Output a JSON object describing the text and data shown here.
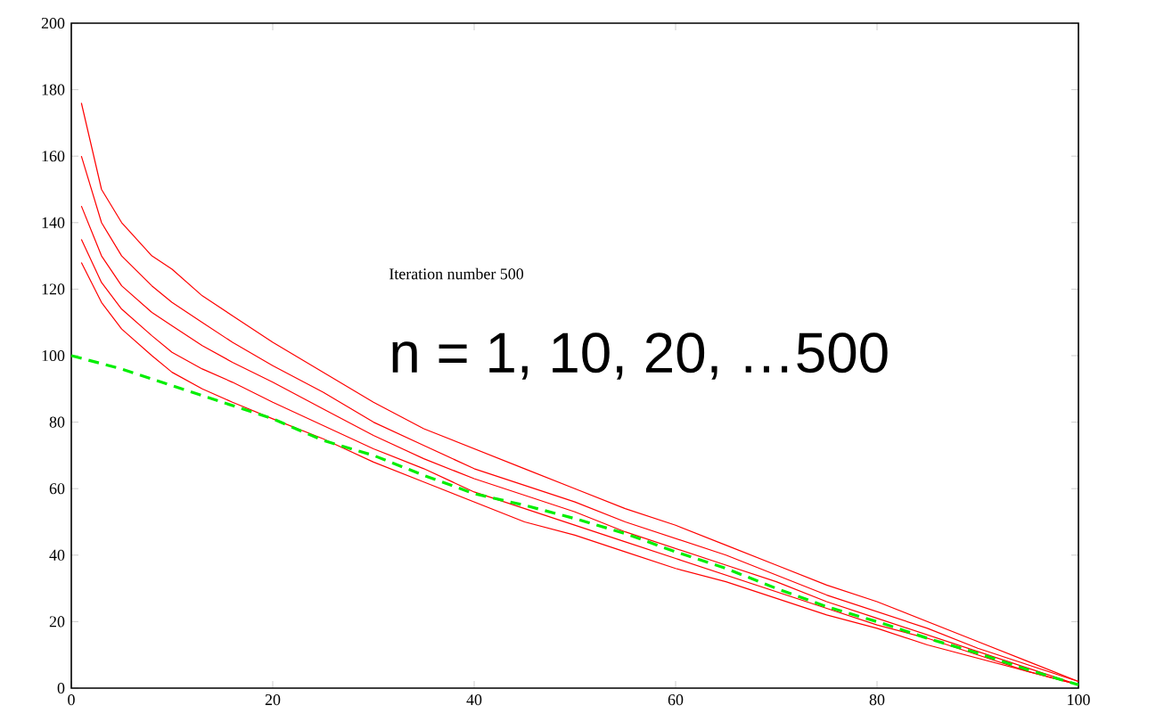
{
  "chart_data": {
    "type": "line",
    "xlim": [
      0,
      100
    ],
    "ylim": [
      0,
      200
    ],
    "xticks": [
      0,
      20,
      40,
      60,
      80,
      100
    ],
    "yticks": [
      0,
      20,
      40,
      60,
      80,
      100,
      120,
      140,
      160,
      180,
      200
    ],
    "grid": false,
    "marker": "none",
    "annotations": [
      "Iteration number 500",
      "n = 1, 10, 20, …500"
    ],
    "series": [
      {
        "color": "#ff0000",
        "x": [
          1,
          3,
          5,
          8,
          10,
          13,
          16,
          20,
          25,
          30,
          35,
          40,
          45,
          50,
          55,
          60,
          65,
          70,
          75,
          80,
          85,
          90,
          95,
          100
        ],
        "values": [
          176,
          150,
          140,
          130,
          126,
          118,
          112,
          104,
          95,
          86,
          78,
          72,
          66,
          60,
          54,
          49,
          43,
          37,
          31,
          26,
          20,
          14,
          8,
          2
        ],
        "line_style": "solid"
      },
      {
        "color": "#ff0000",
        "x": [
          1,
          3,
          5,
          8,
          10,
          13,
          16,
          20,
          25,
          30,
          35,
          40,
          45,
          50,
          55,
          60,
          65,
          70,
          75,
          80,
          85,
          90,
          95,
          100
        ],
        "values": [
          160,
          140,
          130,
          121,
          116,
          110,
          104,
          97,
          89,
          80,
          73,
          66,
          61,
          56,
          50,
          45,
          40,
          34,
          28,
          23,
          18,
          12,
          7,
          2
        ],
        "line_style": "solid"
      },
      {
        "color": "#ff0000",
        "x": [
          1,
          3,
          5,
          8,
          10,
          13,
          16,
          20,
          25,
          30,
          35,
          40,
          45,
          50,
          55,
          60,
          65,
          70,
          75,
          80,
          85,
          90,
          95,
          100
        ],
        "values": [
          145,
          130,
          121,
          113,
          109,
          103,
          98,
          92,
          84,
          76,
          69,
          63,
          58,
          53,
          47,
          42,
          37,
          32,
          26,
          21,
          16,
          11,
          6,
          1
        ],
        "line_style": "solid"
      },
      {
        "color": "#ff0000",
        "x": [
          1,
          3,
          5,
          8,
          10,
          13,
          16,
          20,
          25,
          30,
          35,
          40,
          45,
          50,
          55,
          60,
          65,
          70,
          75,
          80,
          85,
          90,
          95,
          100
        ],
        "values": [
          135,
          122,
          114,
          106,
          101,
          96,
          92,
          86,
          79,
          72,
          66,
          59,
          54,
          49,
          44,
          39,
          34,
          29,
          24,
          19,
          15,
          10,
          5,
          1
        ],
        "line_style": "solid"
      },
      {
        "color": "#ff0000",
        "x": [
          1,
          3,
          5,
          8,
          10,
          13,
          16,
          20,
          25,
          30,
          35,
          40,
          45,
          50,
          55,
          60,
          65,
          70,
          75,
          80,
          85,
          90,
          95,
          100
        ],
        "values": [
          128,
          116,
          108,
          100,
          95,
          90,
          86,
          81,
          75,
          68,
          62,
          56,
          50,
          46,
          41,
          36,
          32,
          27,
          22,
          18,
          13,
          9,
          5,
          1
        ],
        "line_style": "solid"
      },
      {
        "color": "#00ee00",
        "x": [
          0,
          5,
          10,
          15,
          20,
          25,
          30,
          35,
          40,
          45,
          50,
          55,
          60,
          65,
          70,
          75,
          80,
          85,
          90,
          95,
          100
        ],
        "values": [
          100,
          96,
          91,
          86,
          81,
          74.5,
          70,
          64,
          58.5,
          55,
          51,
          46.5,
          41,
          36,
          30,
          24.5,
          20,
          15,
          10.5,
          5.5,
          1
        ],
        "line_style": "dashed"
      }
    ]
  }
}
